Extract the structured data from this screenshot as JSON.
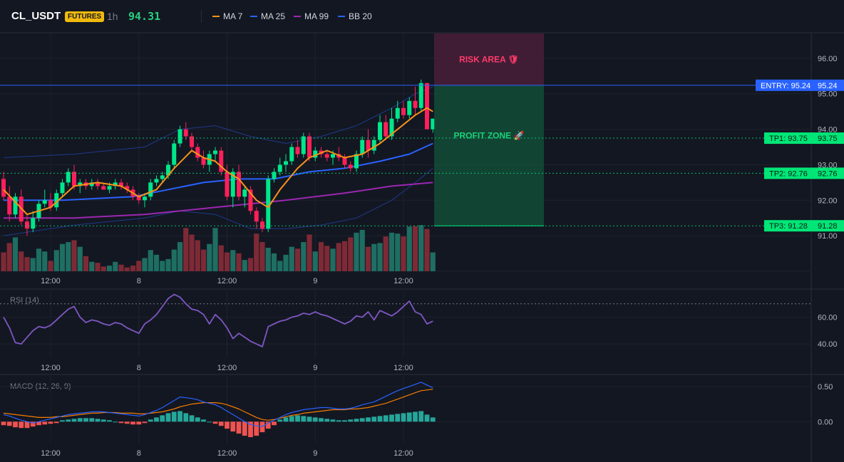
{
  "header": {
    "symbol": "CL_USDT",
    "badge": "FUTURES",
    "timeframe": "1h",
    "price": "94.31",
    "legend": [
      {
        "label": "MA 7",
        "color": "#f7931a"
      },
      {
        "label": "MA 25",
        "color": "#2962ff"
      },
      {
        "label": "MA 99",
        "color": "#9c27b0"
      },
      {
        "label": "BB 20",
        "color": "#2962ff"
      }
    ]
  },
  "colors": {
    "up": "#26a69a",
    "up_candle": "#00e68a",
    "down": "#f23645",
    "down_candle": "#ff1f5a",
    "vol_up": "#1e6e62",
    "vol_down": "#7e2a36",
    "ma7": "#f7931a",
    "ma25": "#2962ff",
    "ma99": "#9c27b0",
    "bb": "#1e3a8a",
    "rsi": "#7e57c2",
    "macd": "#2962ff",
    "signal": "#f57c00",
    "hist_up": "#26a69a",
    "hist_down": "#ef5350",
    "entry": "#2962ff",
    "tp": "#00e676",
    "risk": "#ff3b6b",
    "profit": "#1bd17a"
  },
  "chart_data": [
    {
      "type": "candlestick",
      "y_range": [
        90.0,
        96.7
      ],
      "y_ticks": [
        "96.00",
        "95.00",
        "94.00",
        "93.00",
        "92.00",
        "91.00"
      ],
      "x_ticks": [
        {
          "label": "12:00",
          "index": 8
        },
        {
          "label": "8",
          "index": 23
        },
        {
          "label": "12:00",
          "index": 38
        },
        {
          "label": "9",
          "index": 53
        },
        {
          "label": "12:00",
          "index": 68
        }
      ],
      "candles": [
        [
          92.6,
          92.8,
          92.0,
          92.1
        ],
        [
          92.1,
          92.4,
          91.4,
          91.6
        ],
        [
          91.6,
          92.2,
          91.5,
          92.1
        ],
        [
          92.1,
          92.3,
          91.3,
          91.4
        ],
        [
          91.4,
          91.6,
          91.0,
          91.2
        ],
        [
          91.2,
          91.7,
          91.1,
          91.5
        ],
        [
          91.5,
          92.0,
          91.4,
          91.9
        ],
        [
          91.9,
          92.3,
          91.8,
          92.0
        ],
        [
          92.0,
          92.2,
          91.7,
          91.8
        ],
        [
          91.8,
          92.3,
          91.7,
          92.2
        ],
        [
          92.2,
          92.6,
          92.1,
          92.5
        ],
        [
          92.5,
          92.9,
          92.4,
          92.8
        ],
        [
          92.8,
          93.0,
          92.3,
          92.4
        ],
        [
          92.4,
          92.6,
          92.2,
          92.5
        ],
        [
          92.5,
          92.6,
          92.3,
          92.4
        ],
        [
          92.4,
          92.6,
          92.3,
          92.5
        ],
        [
          92.5,
          92.6,
          92.3,
          92.4
        ],
        [
          92.4,
          92.5,
          92.3,
          92.3
        ],
        [
          92.3,
          92.5,
          92.2,
          92.4
        ],
        [
          92.4,
          92.6,
          92.3,
          92.5
        ],
        [
          92.5,
          92.6,
          92.3,
          92.4
        ],
        [
          92.4,
          92.5,
          92.2,
          92.3
        ],
        [
          92.3,
          92.4,
          92.0,
          92.1
        ],
        [
          92.1,
          92.2,
          91.9,
          92.0
        ],
        [
          92.0,
          92.2,
          91.8,
          92.1
        ],
        [
          92.1,
          92.6,
          92.0,
          92.5
        ],
        [
          92.5,
          92.7,
          92.4,
          92.6
        ],
        [
          92.6,
          92.8,
          92.5,
          92.7
        ],
        [
          92.7,
          93.1,
          92.6,
          93.0
        ],
        [
          93.0,
          93.7,
          92.9,
          93.6
        ],
        [
          93.6,
          94.1,
          93.5,
          94.0
        ],
        [
          94.0,
          94.2,
          93.7,
          93.8
        ],
        [
          93.8,
          93.9,
          93.4,
          93.5
        ],
        [
          93.5,
          93.6,
          93.1,
          93.2
        ],
        [
          93.2,
          93.4,
          92.9,
          93.0
        ],
        [
          93.0,
          93.4,
          92.8,
          93.3
        ],
        [
          93.3,
          93.5,
          93.1,
          93.4
        ],
        [
          93.4,
          93.5,
          92.7,
          92.8
        ],
        [
          92.8,
          93.0,
          92.0,
          92.1
        ],
        [
          92.1,
          92.9,
          91.8,
          92.8
        ],
        [
          92.8,
          93.0,
          92.0,
          92.1
        ],
        [
          92.1,
          92.4,
          91.8,
          92.3
        ],
        [
          92.3,
          92.4,
          91.6,
          91.7
        ],
        [
          91.7,
          91.8,
          91.2,
          91.4
        ],
        [
          91.4,
          91.5,
          91.1,
          91.2
        ],
        [
          91.2,
          92.7,
          91.1,
          92.6
        ],
        [
          92.6,
          92.9,
          92.5,
          92.8
        ],
        [
          92.8,
          93.2,
          92.7,
          93.0
        ],
        [
          93.0,
          93.3,
          92.8,
          93.1
        ],
        [
          93.1,
          93.6,
          93.0,
          93.5
        ],
        [
          93.5,
          93.7,
          93.2,
          93.3
        ],
        [
          93.3,
          93.9,
          93.2,
          93.8
        ],
        [
          93.8,
          93.9,
          93.1,
          93.2
        ],
        [
          93.2,
          93.5,
          93.1,
          93.4
        ],
        [
          93.4,
          93.5,
          93.2,
          93.3
        ],
        [
          93.3,
          93.4,
          93.1,
          93.2
        ],
        [
          93.2,
          93.4,
          93.0,
          93.3
        ],
        [
          93.3,
          93.5,
          93.1,
          93.2
        ],
        [
          93.2,
          93.3,
          92.9,
          93.0
        ],
        [
          93.0,
          93.1,
          92.8,
          92.9
        ],
        [
          92.9,
          93.4,
          92.8,
          93.3
        ],
        [
          93.3,
          93.8,
          93.2,
          93.7
        ],
        [
          93.7,
          94.0,
          93.2,
          93.4
        ],
        [
          93.4,
          93.8,
          93.3,
          93.7
        ],
        [
          93.7,
          94.4,
          93.6,
          94.2
        ],
        [
          94.2,
          94.4,
          93.7,
          93.8
        ],
        [
          93.8,
          94.6,
          93.7,
          94.3
        ],
        [
          94.3,
          94.8,
          94.2,
          94.6
        ],
        [
          94.6,
          94.8,
          94.3,
          94.4
        ],
        [
          94.4,
          94.9,
          94.3,
          94.8
        ],
        [
          94.8,
          95.2,
          94.4,
          94.6
        ],
        [
          94.6,
          95.4,
          94.5,
          95.3
        ],
        [
          95.3,
          95.3,
          94.0,
          94.0
        ],
        [
          94.0,
          94.3,
          93.9,
          94.3
        ]
      ],
      "volume_scale_max": 100,
      "volume": [
        40,
        60,
        72,
        42,
        30,
        28,
        48,
        42,
        22,
        45,
        58,
        62,
        66,
        52,
        32,
        20,
        18,
        10,
        12,
        20,
        14,
        8,
        12,
        22,
        28,
        45,
        35,
        22,
        26,
        46,
        62,
        92,
        78,
        66,
        46,
        58,
        92,
        55,
        40,
        45,
        38,
        24,
        28,
        80,
        62,
        50,
        38,
        22,
        35,
        52,
        48,
        62,
        78,
        42,
        62,
        54,
        48,
        60,
        64,
        72,
        82,
        88,
        52,
        58,
        60,
        74,
        82,
        80,
        74,
        95,
        96,
        98,
        90,
        40
      ],
      "ma7": [
        [
          0,
          92.3
        ],
        [
          4,
          91.6
        ],
        [
          8,
          91.8
        ],
        [
          12,
          92.4
        ],
        [
          16,
          92.5
        ],
        [
          20,
          92.4
        ],
        [
          23,
          92.1
        ],
        [
          26,
          92.3
        ],
        [
          29,
          92.9
        ],
        [
          32,
          93.4
        ],
        [
          34,
          93.2
        ],
        [
          36,
          93.1
        ],
        [
          38,
          92.8
        ],
        [
          40,
          92.6
        ],
        [
          43,
          92.0
        ],
        [
          45,
          91.8
        ],
        [
          47,
          92.3
        ],
        [
          50,
          92.9
        ],
        [
          52,
          93.2
        ],
        [
          55,
          93.4
        ],
        [
          58,
          93.2
        ],
        [
          61,
          93.3
        ],
        [
          64,
          93.6
        ],
        [
          67,
          94.0
        ],
        [
          70,
          94.4
        ],
        [
          72,
          94.6
        ],
        [
          73,
          94.5
        ]
      ],
      "ma25": [
        [
          0,
          92.0
        ],
        [
          10,
          92.0
        ],
        [
          22,
          92.1
        ],
        [
          28,
          92.3
        ],
        [
          34,
          92.5
        ],
        [
          40,
          92.6
        ],
        [
          46,
          92.6
        ],
        [
          52,
          92.8
        ],
        [
          58,
          92.9
        ],
        [
          64,
          93.1
        ],
        [
          69,
          93.3
        ],
        [
          73,
          93.6
        ]
      ],
      "ma99": [
        [
          0,
          91.5
        ],
        [
          12,
          91.5
        ],
        [
          24,
          91.6
        ],
        [
          36,
          91.8
        ],
        [
          48,
          92.0
        ],
        [
          58,
          92.2
        ],
        [
          66,
          92.4
        ],
        [
          73,
          92.5
        ]
      ],
      "bb_upper": [
        [
          0,
          93.2
        ],
        [
          12,
          93.3
        ],
        [
          24,
          93.5
        ],
        [
          30,
          94.0
        ],
        [
          36,
          94.1
        ],
        [
          42,
          93.8
        ],
        [
          48,
          93.6
        ],
        [
          54,
          93.8
        ],
        [
          60,
          94.1
        ],
        [
          66,
          94.6
        ],
        [
          70,
          95.0
        ],
        [
          73,
          95.2
        ]
      ],
      "bb_lower": [
        [
          0,
          91.0
        ],
        [
          12,
          91.3
        ],
        [
          24,
          91.5
        ],
        [
          30,
          91.7
        ],
        [
          36,
          91.6
        ],
        [
          42,
          91.2
        ],
        [
          48,
          91.2
        ],
        [
          54,
          91.3
        ],
        [
          60,
          91.5
        ],
        [
          66,
          92.0
        ],
        [
          70,
          92.5
        ],
        [
          73,
          92.9
        ]
      ],
      "entry": {
        "label": "ENTRY: 95.24",
        "value": 95.24,
        "axis_label": "95.24"
      },
      "targets": [
        {
          "label": "TP1: 93.75",
          "value": 93.75,
          "axis_label": "93.75"
        },
        {
          "label": "TP2: 92.76",
          "value": 92.76,
          "axis_label": "92.76"
        },
        {
          "label": "TP3: 91.28",
          "value": 91.28,
          "axis_label": "91.28"
        }
      ],
      "risk_zone": {
        "label": "RISK AREA 🛡",
        "from": 95.24,
        "to": 96.7
      },
      "profit_zone": {
        "label": "PROFIT ZONE 🚀",
        "from": 91.28,
        "to": 95.24
      }
    },
    {
      "type": "line",
      "title": "RSI (14)",
      "y_range": [
        30,
        80
      ],
      "y_ticks": [
        "60.00",
        "40.00"
      ],
      "overbought": 70,
      "values": [
        60,
        52,
        41,
        40,
        45,
        50,
        53,
        52,
        54,
        58,
        62,
        66,
        68,
        60,
        56,
        58,
        57,
        55,
        54,
        56,
        55,
        52,
        50,
        48,
        55,
        58,
        62,
        68,
        74,
        77,
        75,
        70,
        66,
        65,
        62,
        55,
        62,
        58,
        52,
        44,
        48,
        45,
        42,
        40,
        38,
        53,
        55,
        57,
        58,
        60,
        61,
        63,
        62,
        64,
        62,
        61,
        59,
        57,
        55,
        57,
        61,
        60,
        64,
        58,
        65,
        63,
        61,
        64,
        68,
        72,
        64,
        62,
        55,
        57
      ]
    },
    {
      "type": "line",
      "title": "MACD (12, 26, 9)",
      "y_range": [
        -0.3,
        0.65
      ],
      "y_ticks": [
        "0.50",
        "0.00"
      ],
      "macd": [
        0.1,
        0.08,
        0.05,
        0.02,
        0.0,
        -0.02,
        0.0,
        0.02,
        0.04,
        0.06,
        0.08,
        0.1,
        0.11,
        0.12,
        0.13,
        0.14,
        0.14,
        0.14,
        0.13,
        0.12,
        0.11,
        0.1,
        0.09,
        0.08,
        0.1,
        0.13,
        0.16,
        0.2,
        0.25,
        0.3,
        0.35,
        0.34,
        0.33,
        0.31,
        0.28,
        0.26,
        0.24,
        0.2,
        0.15,
        0.1,
        0.05,
        0.0,
        -0.04,
        -0.06,
        -0.07,
        -0.02,
        0.02,
        0.06,
        0.1,
        0.13,
        0.15,
        0.17,
        0.18,
        0.19,
        0.2,
        0.2,
        0.19,
        0.18,
        0.18,
        0.19,
        0.21,
        0.24,
        0.26,
        0.28,
        0.32,
        0.36,
        0.4,
        0.44,
        0.47,
        0.5,
        0.53,
        0.56,
        0.52,
        0.48
      ],
      "signal": [
        0.12,
        0.11,
        0.1,
        0.09,
        0.08,
        0.07,
        0.06,
        0.06,
        0.06,
        0.07,
        0.07,
        0.08,
        0.09,
        0.1,
        0.11,
        0.12,
        0.12,
        0.13,
        0.13,
        0.13,
        0.12,
        0.12,
        0.12,
        0.11,
        0.11,
        0.12,
        0.13,
        0.14,
        0.16,
        0.18,
        0.21,
        0.23,
        0.25,
        0.26,
        0.27,
        0.27,
        0.27,
        0.26,
        0.24,
        0.21,
        0.18,
        0.14,
        0.1,
        0.06,
        0.03,
        0.02,
        0.03,
        0.05,
        0.07,
        0.09,
        0.1,
        0.12,
        0.13,
        0.14,
        0.15,
        0.16,
        0.17,
        0.17,
        0.17,
        0.18,
        0.18,
        0.19,
        0.2,
        0.22,
        0.24,
        0.26,
        0.29,
        0.32,
        0.35,
        0.38,
        0.41,
        0.44,
        0.45,
        0.46
      ],
      "histogram": [
        -0.05,
        -0.06,
        -0.08,
        -0.09,
        -0.09,
        -0.07,
        -0.05,
        -0.04,
        -0.03,
        -0.02,
        0.02,
        0.03,
        0.04,
        0.05,
        0.05,
        0.05,
        0.04,
        0.03,
        0.02,
        0.0,
        -0.02,
        -0.03,
        -0.04,
        -0.04,
        -0.02,
        0.03,
        0.06,
        0.09,
        0.12,
        0.14,
        0.15,
        0.12,
        0.09,
        0.06,
        0.03,
        0.0,
        -0.03,
        -0.06,
        -0.1,
        -0.14,
        -0.17,
        -0.2,
        -0.22,
        -0.2,
        -0.15,
        -0.1,
        -0.05,
        0.03,
        0.06,
        0.08,
        0.09,
        0.08,
        0.07,
        0.06,
        0.05,
        0.04,
        0.03,
        0.02,
        0.02,
        0.03,
        0.04,
        0.05,
        0.06,
        0.07,
        0.08,
        0.09,
        0.1,
        0.11,
        0.12,
        0.13,
        0.14,
        0.15,
        0.1,
        0.06
      ]
    }
  ]
}
